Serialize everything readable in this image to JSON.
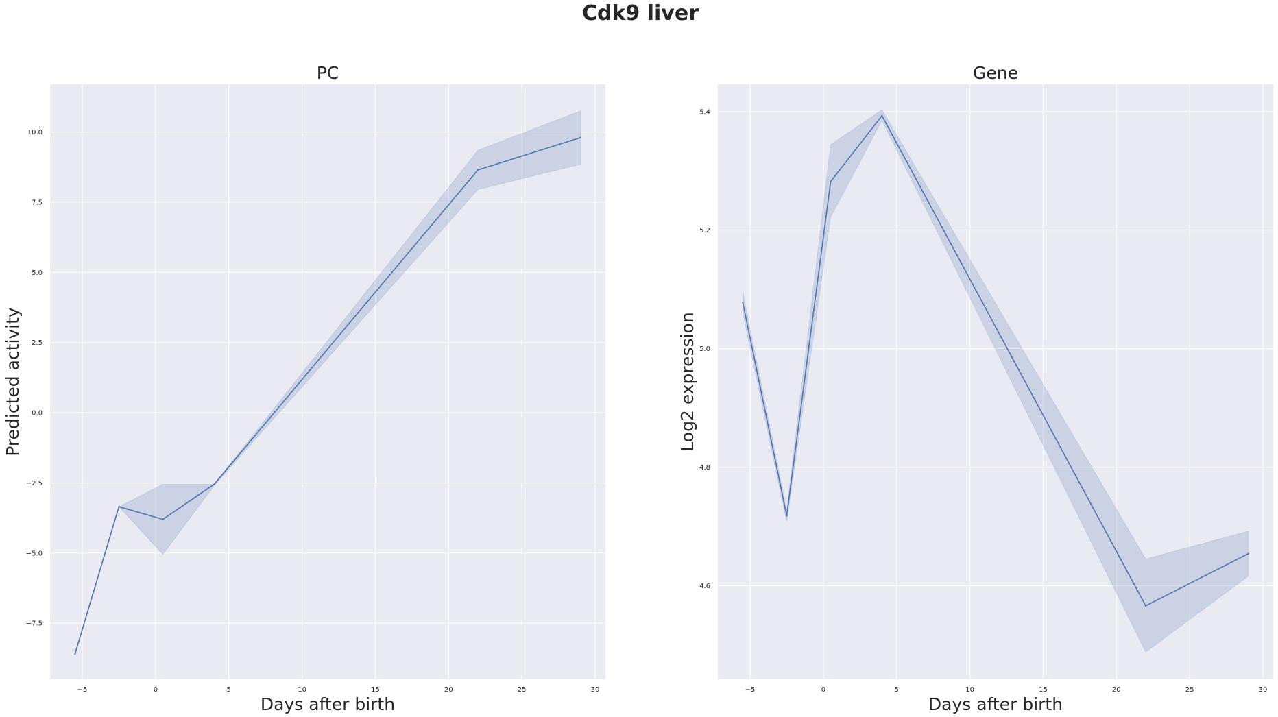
{
  "figure": {
    "suptitle": "Cdk9 liver"
  },
  "colors": {
    "line": "#4c72b0",
    "band": "#4c72b0",
    "plot_background": "#eaeaf2",
    "grid": "#ffffff",
    "text": "#262626"
  },
  "chart_data": [
    {
      "type": "line",
      "title": "PC",
      "xlabel": "Days after birth",
      "ylabel": "Predicted activity",
      "xlim": [
        -7.2,
        30.7
      ],
      "ylim": [
        -9.5,
        11.7
      ],
      "xticks": [
        -5,
        0,
        5,
        10,
        15,
        20,
        25,
        30
      ],
      "xtick_labels": [
        "−5",
        "0",
        "5",
        "10",
        "15",
        "20",
        "25",
        "30"
      ],
      "yticks": [
        -7.5,
        -5.0,
        -2.5,
        0.0,
        2.5,
        5.0,
        7.5,
        10.0
      ],
      "ytick_labels": [
        "−7.5",
        "−5.0",
        "−2.5",
        "0.0",
        "2.5",
        "5.0",
        "7.5",
        "10.0"
      ],
      "grid": true,
      "x": [
        -5.5,
        -2.5,
        0.5,
        4,
        22,
        29
      ],
      "y": [
        -8.6,
        -3.35,
        -3.8,
        -2.55,
        8.65,
        9.8
      ],
      "ci_lower": [
        -8.6,
        -3.35,
        -5.05,
        -2.6,
        7.95,
        8.85
      ],
      "ci_upper": [
        -8.6,
        -3.35,
        -2.55,
        -2.55,
        9.35,
        10.75
      ]
    },
    {
      "type": "line",
      "title": "Gene",
      "xlabel": "Days after birth",
      "ylabel": "Log2 expression",
      "xlim": [
        -7.2,
        30.7
      ],
      "ylim": [
        4.442,
        5.446
      ],
      "xticks": [
        -5,
        0,
        5,
        10,
        15,
        20,
        25,
        30
      ],
      "xtick_labels": [
        "−5",
        "0",
        "5",
        "10",
        "15",
        "20",
        "25",
        "30"
      ],
      "yticks": [
        4.6,
        4.8,
        5.0,
        5.2,
        5.4
      ],
      "ytick_labels": [
        "4.6",
        "4.8",
        "5.0",
        "5.2",
        "5.4"
      ],
      "grid": true,
      "x": [
        -5.5,
        -2.5,
        0.5,
        4,
        22,
        29
      ],
      "y": [
        5.078,
        4.718,
        5.282,
        5.393,
        4.566,
        4.654
      ],
      "ci_lower": [
        5.06,
        4.708,
        5.222,
        5.385,
        4.488,
        4.616
      ],
      "ci_upper": [
        5.096,
        4.728,
        5.344,
        5.403,
        4.645,
        4.692
      ]
    }
  ]
}
